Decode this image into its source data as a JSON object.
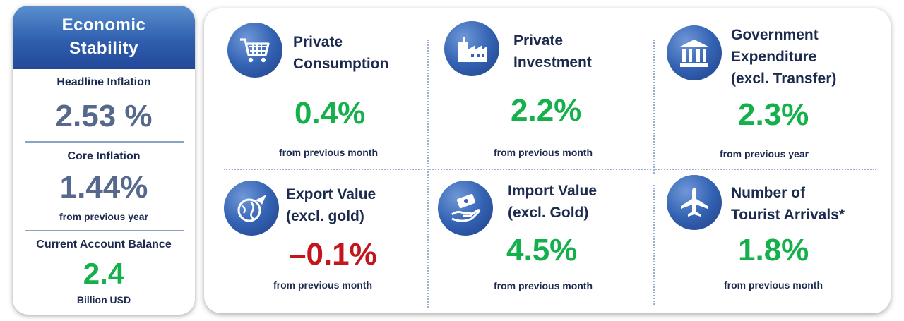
{
  "economic_stability": {
    "header": [
      "Economic",
      "Stability"
    ],
    "headline_inflation": {
      "label": "Headline Inflation",
      "value": "2.53 %"
    },
    "core_inflation": {
      "label": "Core Inflation",
      "value": "1.44%",
      "sub": "from previous year"
    },
    "current_account": {
      "label": "Current Account Balance",
      "value": "2.4",
      "sub": "Billion USD"
    }
  },
  "indicators": [
    {
      "title": [
        "Private",
        "Consumption"
      ],
      "value": "0.4%",
      "sub": "from previous month",
      "icon": "shopping-cart-icon",
      "trend": "positive"
    },
    {
      "title": [
        "Private",
        "Investment"
      ],
      "value": "2.2%",
      "sub": "from previous month",
      "icon": "factory-icon",
      "trend": "positive"
    },
    {
      "title": [
        "Government",
        "Expenditure",
        "(excl. Transfer)"
      ],
      "value": "2.3%",
      "sub": "from previous year",
      "icon": "government-building-icon",
      "trend": "positive"
    },
    {
      "title": [
        "Export Value",
        "(excl. gold)"
      ],
      "value": "–0.1%",
      "sub": "from previous month",
      "icon": "globe-plane-icon",
      "trend": "negative"
    },
    {
      "title": [
        "Import Value",
        "(excl. Gold)"
      ],
      "value": "4.5%",
      "sub": "from previous month",
      "icon": "money-hand-icon",
      "trend": "positive"
    },
    {
      "title": [
        "Number of",
        "Tourist Arrivals*"
      ],
      "value": "1.8%",
      "sub": "from previous month",
      "icon": "airplane-icon",
      "trend": "positive"
    }
  ],
  "colors": {
    "positive": "#13b04b",
    "negative": "#c3161c",
    "label": "#1b2a4e",
    "muted_value": "#56698c",
    "accent": "#2f5fae"
  }
}
